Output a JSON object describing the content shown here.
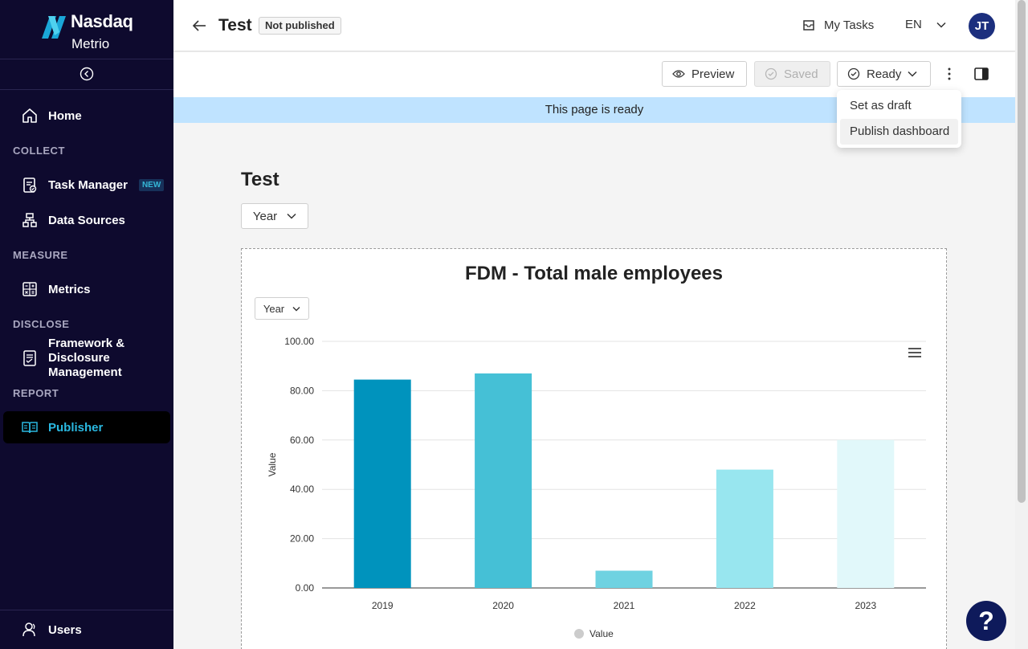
{
  "brand": {
    "name": "Nasdaq",
    "product": "Metrio",
    "accent": "#00a3e0"
  },
  "sidebar": {
    "home": "Home",
    "sections": {
      "collect": "COLLECT",
      "measure": "MEASURE",
      "disclose": "DISCLOSE",
      "report": "REPORT"
    },
    "items": {
      "task_manager": "Task Manager",
      "task_manager_badge": "NEW",
      "data_sources": "Data Sources",
      "metrics": "Metrics",
      "framework_line1": "Framework &",
      "framework_line2": "Disclosure",
      "framework_line3": "Management",
      "publisher": "Publisher"
    },
    "users": "Users"
  },
  "header": {
    "page_name": "Test",
    "status": "Not published",
    "my_tasks": "My Tasks",
    "language": "EN",
    "avatar_initials": "JT"
  },
  "toolbar": {
    "preview": "Preview",
    "saved": "Saved",
    "ready": "Ready"
  },
  "banner": {
    "text": "This page is ready"
  },
  "dropdown": {
    "items": [
      "Set as draft",
      "Publish dashboard"
    ],
    "highlighted": "Publish dashboard"
  },
  "main": {
    "title": "Test",
    "filter": "Year"
  },
  "chart_data": {
    "type": "bar",
    "title": "FDM - Total male employees",
    "filter_label": "Year",
    "categories": [
      "2019",
      "2020",
      "2021",
      "2022",
      "2023"
    ],
    "values": [
      84.5,
      87,
      7,
      48,
      60
    ],
    "colors": [
      "#0093bd",
      "#45c0d6",
      "#6fd2e1",
      "#98e6ef",
      "#e1f8fa"
    ],
    "ylabel": "Value",
    "xlabel": "",
    "ylim": [
      0,
      100
    ],
    "yticks": [
      "0.00",
      "20.00",
      "40.00",
      "60.00",
      "80.00",
      "100.00"
    ],
    "legend": "Value",
    "legend_position": "bottom",
    "grid": true
  },
  "help": {
    "label": "?"
  }
}
